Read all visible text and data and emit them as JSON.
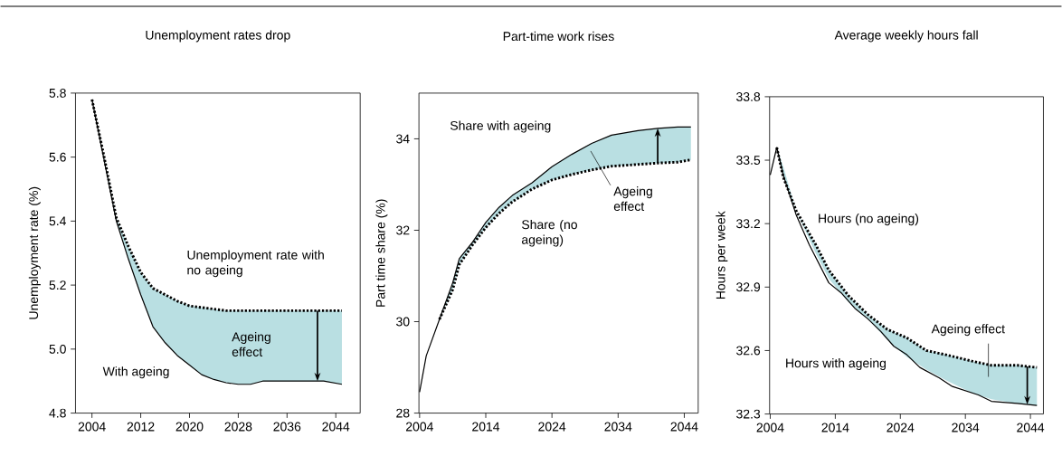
{
  "chart_data": [
    {
      "type": "line",
      "title": "Unemployment rates drop",
      "ylabel": "Unemployment rate (%)",
      "xlim": [
        2001.3,
        2048
      ],
      "ylim": [
        4.8,
        5.8
      ],
      "xticks": [
        2004,
        2012,
        2020,
        2028,
        2036,
        2044
      ],
      "yticks": [
        {
          "value": 4.8,
          "label": "4.8"
        },
        {
          "value": 5,
          "label": "5.0"
        },
        {
          "value": 5.2,
          "label": "5.2"
        },
        {
          "value": 5.4,
          "label": "5.4"
        },
        {
          "value": 5.6,
          "label": "5.6"
        },
        {
          "value": 5.8,
          "label": "5.8"
        }
      ],
      "annotations": [
        "Ageing effect"
      ],
      "series": [
        {
          "name": "With ageing",
          "color": "#000000",
          "line_style": "solid",
          "x": [
            2004,
            2006,
            2008,
            2010,
            2012,
            2014,
            2016,
            2018,
            2020,
            2022,
            2024,
            2026,
            2028,
            2030,
            2032,
            2036,
            2040,
            2042,
            2045
          ],
          "values": [
            5.78,
            5.59,
            5.4,
            5.28,
            5.17,
            5.07,
            5.02,
            4.98,
            4.95,
            4.92,
            4.905,
            4.895,
            4.89,
            4.89,
            4.9,
            4.9,
            4.9,
            4.9,
            4.89
          ]
        },
        {
          "name": "Unemployment rate with no ageing",
          "color": "#000000",
          "line_style": "dotted",
          "x": [
            2004,
            2006,
            2008,
            2010,
            2012,
            2014,
            2016,
            2018,
            2020,
            2022,
            2024,
            2026,
            2028,
            2030,
            2032,
            2036,
            2040,
            2042,
            2045
          ],
          "values": [
            5.78,
            5.6,
            5.41,
            5.32,
            5.24,
            5.19,
            5.17,
            5.15,
            5.135,
            5.13,
            5.125,
            5.12,
            5.12,
            5.12,
            5.12,
            5.12,
            5.12,
            5.12,
            5.12
          ],
          "lower": [
            5.78,
            5.59,
            5.4,
            5.28,
            5.17,
            5.07,
            5.02,
            4.98,
            4.95,
            4.92,
            4.905,
            4.895,
            4.89,
            4.89,
            4.9,
            4.9,
            4.9,
            4.9,
            4.89
          ],
          "upper": [
            5.78,
            5.6,
            5.41,
            5.32,
            5.24,
            5.19,
            5.17,
            5.15,
            5.135,
            5.13,
            5.125,
            5.12,
            5.12,
            5.12,
            5.12,
            5.12,
            5.12,
            5.12,
            5.12
          ]
        }
      ]
    },
    {
      "type": "line",
      "title": "Part-time work rises",
      "ylabel": "Part time share (%)",
      "xlim": [
        2003.9,
        2046.1
      ],
      "ylim": [
        28,
        35
      ],
      "xticks": [
        2004,
        2014,
        2024,
        2034,
        2044
      ],
      "yticks": [
        28,
        30,
        32,
        34
      ],
      "annotations": [
        "Ageing effect"
      ],
      "series": [
        {
          "name": "Share with ageing",
          "color": "#000000",
          "line_style": "solid",
          "x": [
            2004,
            2005,
            2007,
            2009,
            2010,
            2012,
            2014,
            2016,
            2018,
            2021,
            2024,
            2027,
            2030,
            2033,
            2037,
            2040,
            2043,
            2045
          ],
          "values": [
            28.46,
            29.25,
            30.05,
            30.85,
            31.38,
            31.74,
            32.17,
            32.5,
            32.76,
            33.04,
            33.39,
            33.66,
            33.9,
            34.08,
            34.18,
            34.23,
            34.26,
            34.26
          ]
        },
        {
          "name": "Share (no ageing)",
          "color": "#000000",
          "line_style": "dotted",
          "x": [
            2007,
            2009,
            2010,
            2012,
            2014,
            2016,
            2018,
            2021,
            2024,
            2027,
            2030,
            2033,
            2037,
            2040,
            2043,
            2045
          ],
          "values": [
            30.05,
            30.7,
            31.25,
            31.68,
            32.06,
            32.37,
            32.62,
            32.9,
            33.1,
            33.22,
            33.32,
            33.4,
            33.44,
            33.47,
            33.49,
            33.54
          ],
          "lower": [
            30.05,
            30.7,
            31.25,
            31.68,
            32.06,
            32.37,
            32.62,
            32.9,
            33.1,
            33.22,
            33.32,
            33.4,
            33.44,
            33.47,
            33.49,
            33.54
          ],
          "upper": [
            30.05,
            30.85,
            31.38,
            31.74,
            32.17,
            32.5,
            32.76,
            33.04,
            33.39,
            33.66,
            33.9,
            34.08,
            34.18,
            34.23,
            34.26,
            34.26
          ]
        }
      ]
    },
    {
      "type": "line",
      "title": "Average weekly hours fall",
      "ylabel": "Hours per week",
      "xlim": [
        2003.9,
        2046
      ],
      "ylim": [
        32.3,
        33.8
      ],
      "xticks": [
        2004,
        2014,
        2024,
        2034,
        2044
      ],
      "yticks": [
        32.3,
        32.6,
        32.9,
        33.2,
        33.5,
        33.8
      ],
      "annotations": [
        "Ageing effect"
      ],
      "series": [
        {
          "name": "Hours with ageing",
          "color": "#000000",
          "line_style": "solid",
          "x": [
            2004,
            2005,
            2006,
            2008,
            2010,
            2013,
            2015,
            2017,
            2019,
            2021,
            2023,
            2025,
            2027,
            2030,
            2032,
            2036,
            2038,
            2042,
            2045
          ],
          "values": [
            33.43,
            33.56,
            33.43,
            33.24,
            33.1,
            32.92,
            32.87,
            32.8,
            32.75,
            32.69,
            32.62,
            32.58,
            32.52,
            32.47,
            32.43,
            32.39,
            32.36,
            32.35,
            32.34
          ]
        },
        {
          "name": "Hours (no ageing)",
          "color": "#000000",
          "line_style": "dotted",
          "x": [
            2005,
            2006,
            2008,
            2011,
            2013,
            2016,
            2019,
            2022,
            2025,
            2028,
            2031,
            2035,
            2038,
            2042,
            2045
          ],
          "values": [
            33.56,
            33.42,
            33.26,
            33.1,
            32.98,
            32.86,
            32.77,
            32.7,
            32.66,
            32.6,
            32.58,
            32.55,
            32.53,
            32.53,
            32.52
          ],
          "lower": [
            33.56,
            33.47,
            33.26,
            33.06,
            32.94,
            32.83,
            32.75,
            32.65,
            32.57,
            32.51,
            32.46,
            32.4,
            32.37,
            32.35,
            32.34
          ],
          "upper": [
            33.56,
            33.42,
            33.26,
            33.1,
            32.98,
            32.86,
            32.77,
            32.7,
            32.66,
            32.6,
            32.58,
            32.55,
            32.53,
            32.53,
            32.52
          ]
        }
      ]
    }
  ]
}
